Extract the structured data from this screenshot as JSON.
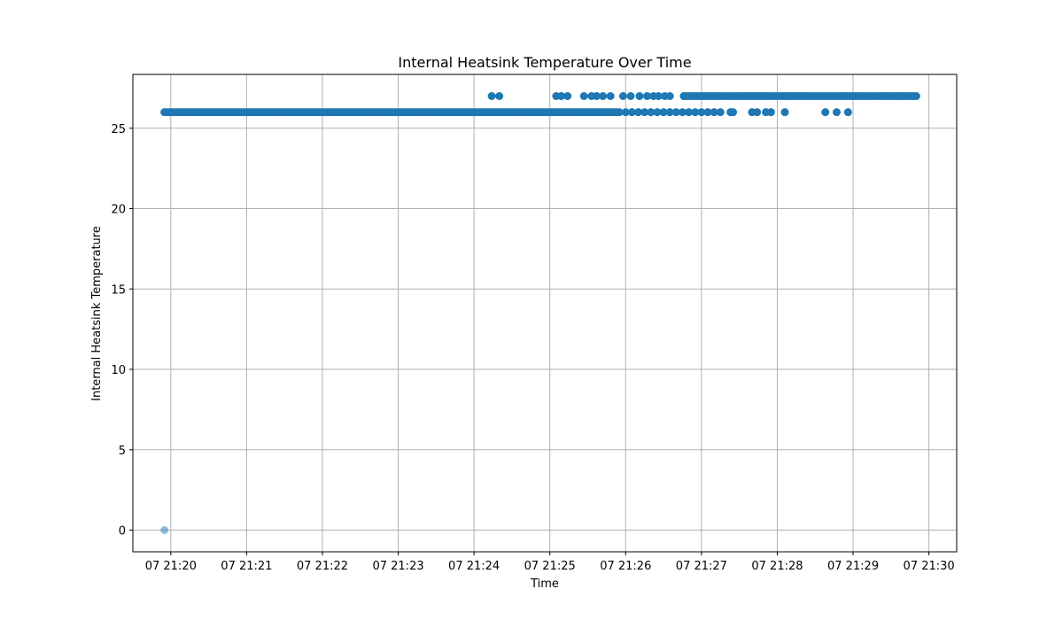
{
  "chart_data": {
    "type": "scatter",
    "title": "Internal Heatsink Temperature Over Time",
    "xlabel": "Time",
    "ylabel": "Internal Heatsink Temperature",
    "date": "07",
    "x_ticks": [
      "07 21:20",
      "07 21:21",
      "07 21:22",
      "07 21:23",
      "07 21:24",
      "07 21:25",
      "07 21:26",
      "07 21:27",
      "07 21:28",
      "07 21:29",
      "07 21:30"
    ],
    "y_ticks": [
      0,
      5,
      10,
      15,
      20,
      25
    ],
    "xlim": [
      "21:19:30",
      "21:30:22"
    ],
    "ylim": [
      -1.35,
      28.35
    ],
    "grid": true,
    "marker_color": "#1f77b4",
    "series": [
      {
        "x": [
          "21:19:55"
        ],
        "y": [
          0
        ],
        "opacity": 0.5
      },
      {
        "segments": [
          {
            "y": 26,
            "from": "21:19:55",
            "to": "21:25:56"
          },
          {
            "y": 27,
            "from": "21:26:46",
            "to": "21:29:50"
          }
        ],
        "x": [
          "21:26:00",
          "21:26:05",
          "21:26:10",
          "21:26:15",
          "21:26:20",
          "21:26:25",
          "21:26:30",
          "21:26:35",
          "21:26:40",
          "21:26:45",
          "21:26:50",
          "21:26:55",
          "21:27:00",
          "21:27:05",
          "21:27:10",
          "21:27:15",
          "21:27:23",
          "21:27:25",
          "21:27:40",
          "21:27:44",
          "21:27:51",
          "21:27:55",
          "21:28:06",
          "21:28:38",
          "21:28:47",
          "21:28:56",
          "21:24:14",
          "21:24:20",
          "21:25:05",
          "21:25:09",
          "21:25:14",
          "21:25:27",
          "21:25:33",
          "21:25:37",
          "21:25:42",
          "21:25:48",
          "21:25:58",
          "21:26:04",
          "21:26:11",
          "21:26:17",
          "21:26:22",
          "21:26:26",
          "21:26:31",
          "21:26:35"
        ],
        "y": [
          26,
          26,
          26,
          26,
          26,
          26,
          26,
          26,
          26,
          26,
          26,
          26,
          26,
          26,
          26,
          26,
          26,
          26,
          26,
          26,
          26,
          26,
          26,
          26,
          26,
          26,
          27,
          27,
          27,
          27,
          27,
          27,
          27,
          27,
          27,
          27,
          27,
          27,
          27,
          27,
          27,
          27,
          27,
          27
        ],
        "opacity": 1
      }
    ]
  }
}
